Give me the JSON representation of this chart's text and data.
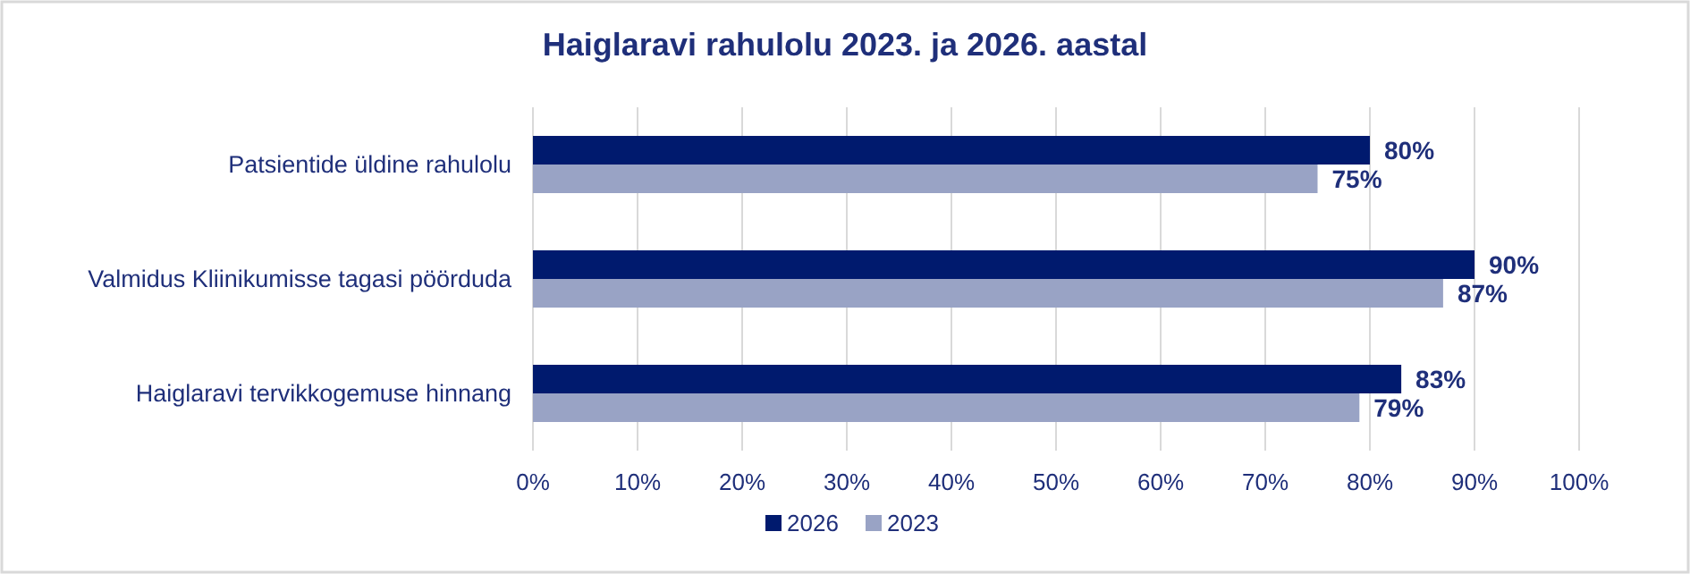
{
  "chart_data": {
    "type": "bar",
    "orientation": "horizontal",
    "title": "Haiglaravi rahulolu 2023. ja 2026. aastal",
    "categories": [
      "Patsientide üldine rahulolu",
      "Valmidus Kliinikumisse tagasi pöörduda",
      "Haiglaravi tervikkogemuse hinnang"
    ],
    "series": [
      {
        "name": "2026",
        "color": "#001a6e",
        "values": [
          80,
          90,
          83
        ],
        "value_labels": [
          "80%",
          "90%",
          "83%"
        ]
      },
      {
        "name": "2023",
        "color": "#99a3c5",
        "values": [
          75,
          87,
          79
        ],
        "value_labels": [
          "75%",
          "87%",
          "79%"
        ]
      }
    ],
    "xlim": [
      0,
      100
    ],
    "xticks": [
      {
        "value": 0,
        "label": "0%"
      },
      {
        "value": 10,
        "label": "10%"
      },
      {
        "value": 20,
        "label": "20%"
      },
      {
        "value": 30,
        "label": "30%"
      },
      {
        "value": 40,
        "label": "40%"
      },
      {
        "value": 50,
        "label": "50%"
      },
      {
        "value": 60,
        "label": "60%"
      },
      {
        "value": 70,
        "label": "70%"
      },
      {
        "value": 80,
        "label": "80%"
      },
      {
        "value": 90,
        "label": "90%"
      },
      {
        "value": 100,
        "label": "100%"
      }
    ],
    "grid": "x",
    "legend": "bottom"
  }
}
